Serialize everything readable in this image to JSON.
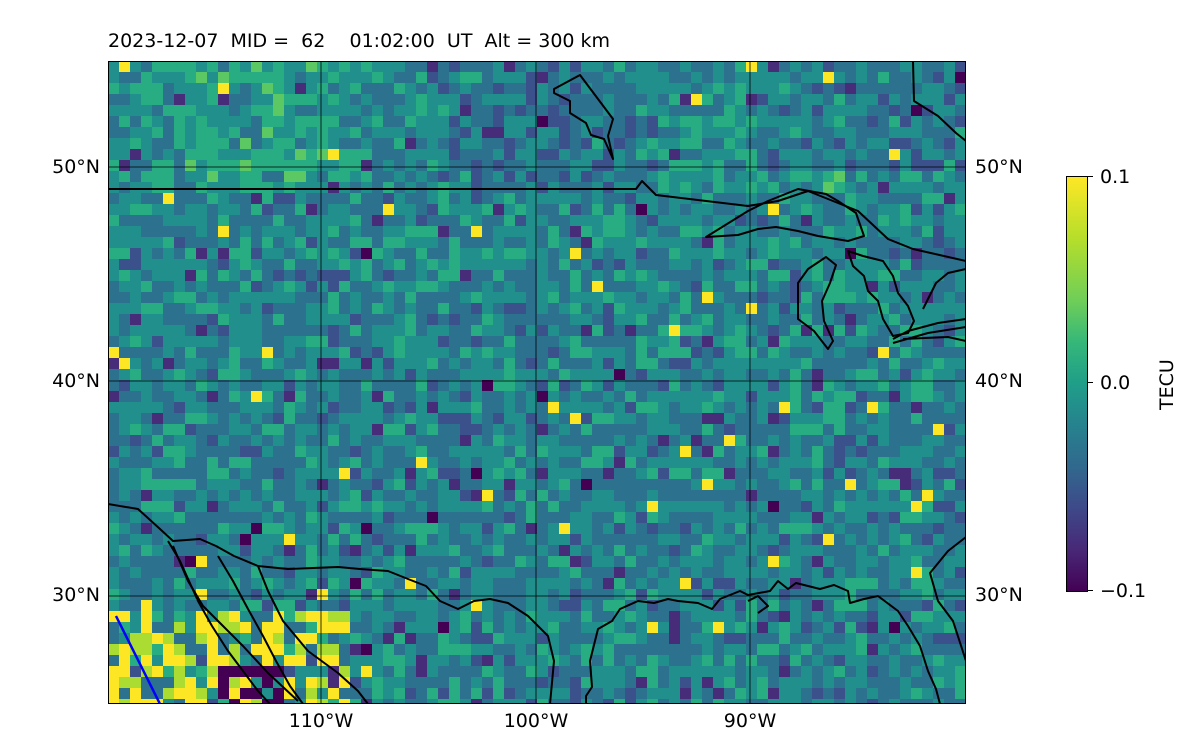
{
  "header": {
    "title": "2023-12-07  MID =  62    01:02:00  UT  Alt = 300 km"
  },
  "map": {
    "lat_labels": [
      "50°N",
      "40°N",
      "30°N"
    ],
    "lon_labels": [
      "110°W",
      "100°W",
      "90°W"
    ],
    "field_colormap": "viridis"
  },
  "colorbar": {
    "ticks": [
      "0.1",
      "0.0",
      "−0.1"
    ],
    "unit": "TECU",
    "colors": [
      "#440154",
      "#3e4989",
      "#26828e",
      "#35b779",
      "#fde725"
    ]
  }
}
